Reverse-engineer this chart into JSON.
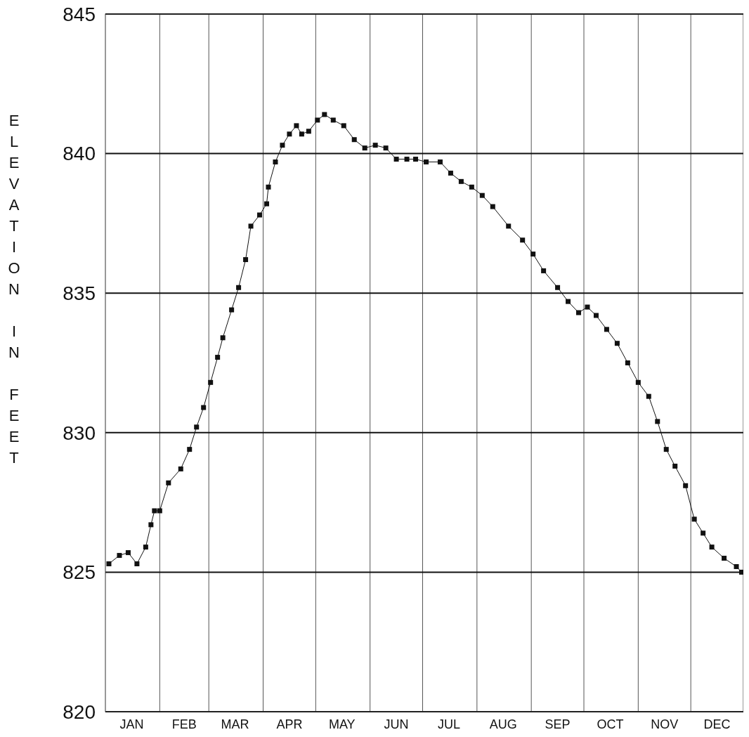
{
  "chart_data": {
    "type": "line",
    "ylabel": "ELEVATION IN FEET",
    "x": [
      "--01-03",
      "--01-09",
      "--01-14",
      "--01-19",
      "--01-24",
      "--01-27",
      "--01-29",
      "--02-01",
      "--02-06",
      "--02-13",
      "--02-18",
      "--02-22",
      "--02-26",
      "--03-02",
      "--03-06",
      "--03-09",
      "--03-14",
      "--03-18",
      "--03-22",
      "--03-25",
      "--03-30",
      "--04-03",
      "--04-04",
      "--04-08",
      "--04-12",
      "--04-16",
      "--04-20",
      "--04-23",
      "--04-27",
      "--05-02",
      "--05-06",
      "--05-11",
      "--05-17",
      "--05-23",
      "--05-29",
      "--06-04",
      "--06-10",
      "--06-16",
      "--06-22",
      "--06-27",
      "--07-03",
      "--07-11",
      "--07-17",
      "--07-23",
      "--07-29",
      "--08-04",
      "--08-10",
      "--08-19",
      "--08-27",
      "--09-02",
      "--09-08",
      "--09-16",
      "--09-22",
      "--09-28",
      "--10-03",
      "--10-08",
      "--10-14",
      "--10-20",
      "--10-26",
      "--11-01",
      "--11-07",
      "--11-12",
      "--11-17",
      "--11-22",
      "--11-28",
      "--12-03",
      "--12-08",
      "--12-13",
      "--12-20",
      "--12-27",
      "--12-30"
    ],
    "series": [
      {
        "color": "#111111",
        "values": [
          825.3,
          825.6,
          825.7,
          825.3,
          825.9,
          826.7,
          827.2,
          827.2,
          828.2,
          828.7,
          829.4,
          830.2,
          830.9,
          831.8,
          832.7,
          833.4,
          834.4,
          835.2,
          836.2,
          837.4,
          837.8,
          838.2,
          838.8,
          839.7,
          840.3,
          840.7,
          841.0,
          840.7,
          840.8,
          841.2,
          841.4,
          841.2,
          841.0,
          840.5,
          840.2,
          840.3,
          840.2,
          839.8,
          839.8,
          839.8,
          839.7,
          839.7,
          839.3,
          839.0,
          838.8,
          838.5,
          838.1,
          837.4,
          836.9,
          836.4,
          835.8,
          835.2,
          834.7,
          834.3,
          834.5,
          834.2,
          833.7,
          833.2,
          832.5,
          831.8,
          831.3,
          830.4,
          829.4,
          828.8,
          828.1,
          826.9,
          826.4,
          825.9,
          825.5,
          825.2,
          825.0
        ]
      }
    ],
    "xlim": [
      "--01-01",
      "--12-31"
    ],
    "xticks": [
      {
        "value": "--01-16",
        "label": "JAN"
      },
      {
        "value": "--02-01",
        "label": null
      },
      {
        "value": "--02-15",
        "label": "FEB"
      },
      {
        "value": "--03-01",
        "label": null
      },
      {
        "value": "--03-16",
        "label": "MAR"
      },
      {
        "value": "--04-01",
        "label": null
      },
      {
        "value": "--04-16",
        "label": "APR"
      },
      {
        "value": "--05-01",
        "label": null
      },
      {
        "value": "--05-16",
        "label": "MAY"
      },
      {
        "value": "--06-01",
        "label": null
      },
      {
        "value": "--06-16",
        "label": "JUN"
      },
      {
        "value": "--07-01",
        "label": null
      },
      {
        "value": "--07-16",
        "label": "JUL"
      },
      {
        "value": "--08-01",
        "label": null
      },
      {
        "value": "--08-16",
        "label": "AUG"
      },
      {
        "value": "--09-01",
        "label": null
      },
      {
        "value": "--09-16",
        "label": "SEP"
      },
      {
        "value": "--10-01",
        "label": null
      },
      {
        "value": "--10-16",
        "label": "OCT"
      },
      {
        "value": "--11-01",
        "label": null
      },
      {
        "value": "--11-16",
        "label": "NOV"
      },
      {
        "value": "--12-01",
        "label": null
      },
      {
        "value": "--12-16",
        "label": "DEC"
      }
    ],
    "ylim": [
      820,
      845
    ],
    "yticks": [
      820,
      825,
      830,
      835,
      840,
      845
    ],
    "grid": true,
    "marker": "square",
    "line_style": "solid"
  }
}
